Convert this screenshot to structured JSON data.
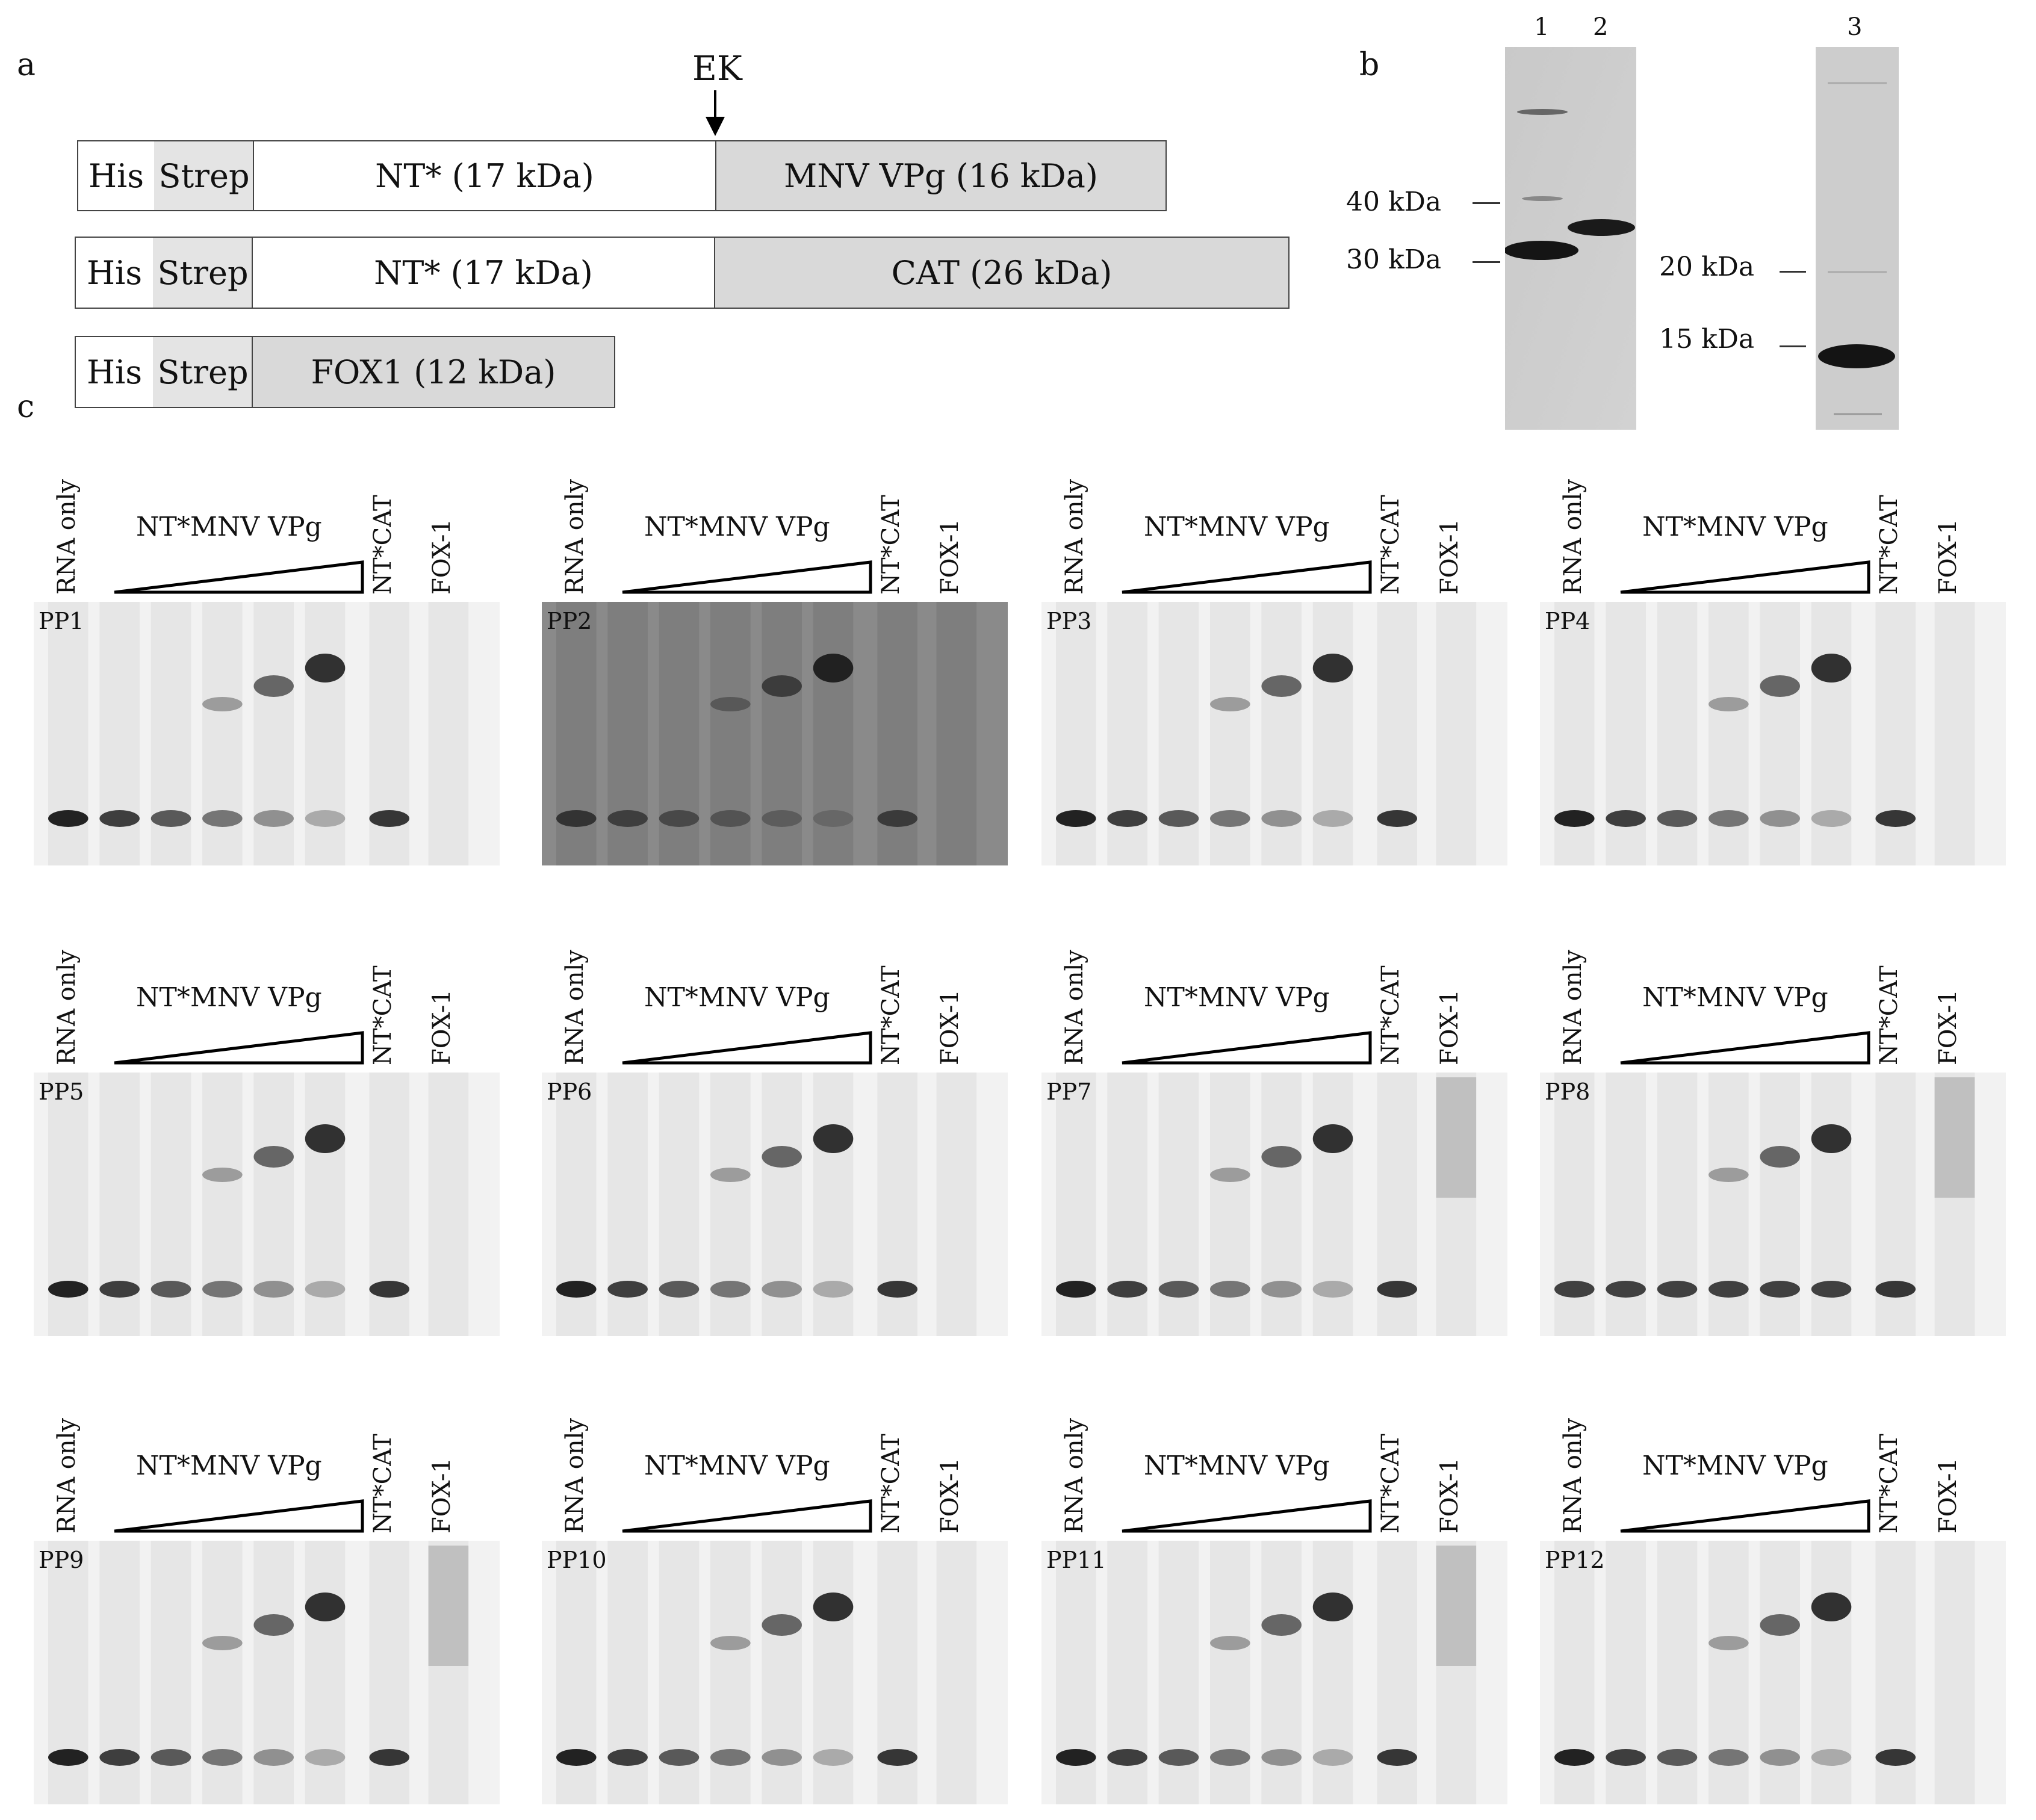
{
  "panel_a": {
    "letter": "a",
    "ek_label": "EK",
    "rows": [
      {
        "his": "His",
        "strep": "Strep",
        "nt": "NT* (17 kDa)",
        "fusion": "MNV VPg (16 kDa)"
      },
      {
        "his": "His",
        "strep": "Strep",
        "nt": "NT* (17 kDa)",
        "fusion": "CAT (26 kDa)"
      },
      {
        "his": "His",
        "strep": "Strep",
        "fusion": "FOX1 (12 kDa)"
      }
    ]
  },
  "panel_b": {
    "letter": "b",
    "lanes": [
      "1",
      "2",
      "3"
    ],
    "markers_left": [
      "40 kDa",
      "30 kDa"
    ],
    "markers_right": [
      "20 kDa",
      "15 kDa"
    ]
  },
  "panel_c": {
    "letter": "c",
    "lane_labels": {
      "rna_only": "RNA only",
      "titration": "NT*MNV VPg",
      "nt_cat": "NT*CAT",
      "fox1": "FOX-1"
    },
    "gels": [
      "PP1",
      "PP2",
      "PP3",
      "PP4",
      "PP5",
      "PP6",
      "PP7",
      "PP8",
      "PP9",
      "PP10",
      "PP11",
      "PP12"
    ]
  }
}
